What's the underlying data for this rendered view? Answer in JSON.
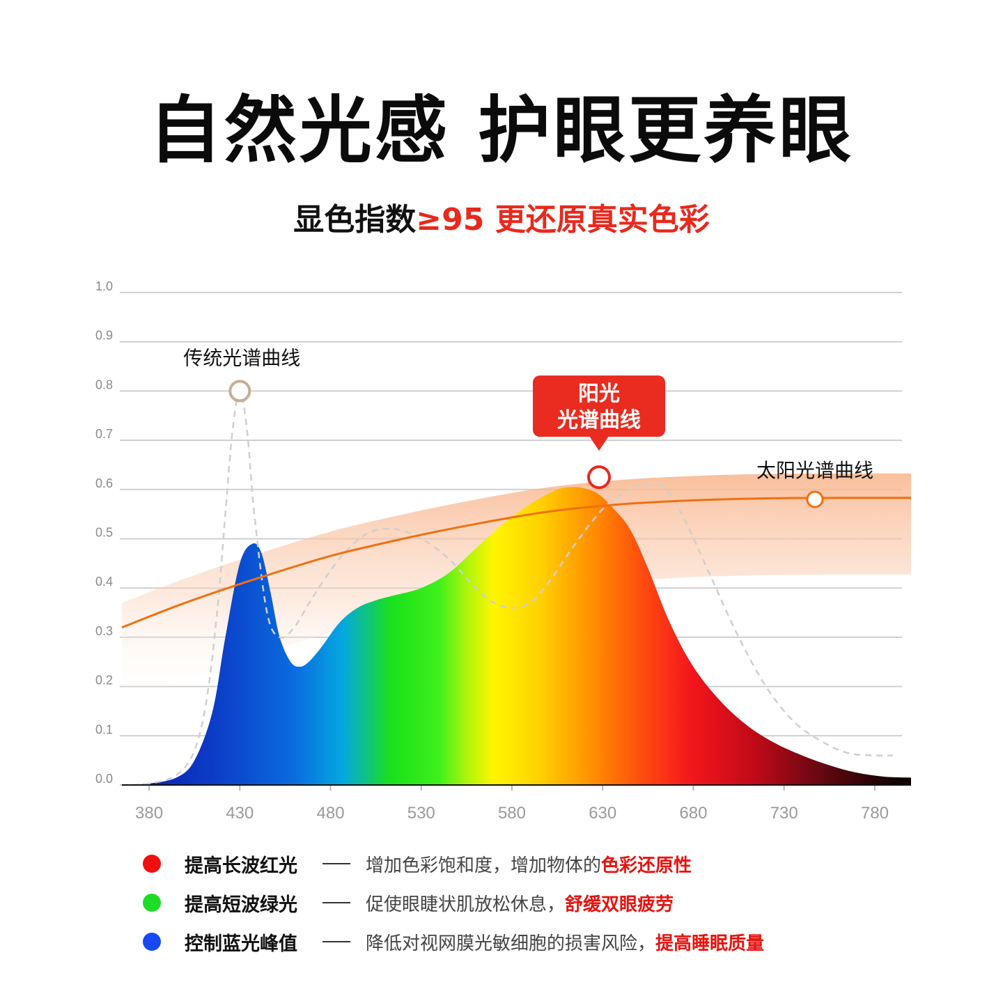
{
  "header": {
    "title": "自然光感 护眼更养眼",
    "subtitle_prefix": "显色指数",
    "subtitle_highlight": "≥95 更还原真实色彩"
  },
  "chart_data": {
    "type": "area",
    "xlabel": "",
    "ylabel": "",
    "xlim": [
      365,
      800
    ],
    "ylim": [
      0,
      1.0
    ],
    "x_ticks": [
      380,
      430,
      480,
      530,
      580,
      630,
      680,
      730,
      780
    ],
    "y_ticks": [
      "0.0",
      "0.1",
      "0.2",
      "0.3",
      "0.4",
      "0.5",
      "0.6",
      "0.7",
      "0.8",
      "0.9",
      "1.0"
    ],
    "grid": true,
    "series": [
      {
        "name": "阳光光谱曲线",
        "style": "filled spectrum gradient",
        "x": [
          365,
          380,
          395,
          405,
          415,
          422,
          430,
          437,
          442,
          447,
          452,
          458,
          463,
          468,
          475,
          485,
          495,
          505,
          515,
          530,
          545,
          560,
          575,
          590,
          605,
          615,
          622,
          628,
          635,
          645,
          655,
          667,
          680,
          695,
          710,
          725,
          740,
          755,
          770,
          785,
          800
        ],
        "y": [
          0.0,
          0.003,
          0.015,
          0.05,
          0.15,
          0.3,
          0.45,
          0.49,
          0.47,
          0.39,
          0.3,
          0.25,
          0.24,
          0.25,
          0.28,
          0.33,
          0.36,
          0.375,
          0.385,
          0.4,
          0.43,
          0.48,
          0.53,
          0.57,
          0.6,
          0.605,
          0.6,
          0.59,
          0.565,
          0.52,
          0.44,
          0.33,
          0.24,
          0.17,
          0.12,
          0.085,
          0.06,
          0.04,
          0.025,
          0.017,
          0.015
        ]
      },
      {
        "name": "传统光谱曲线",
        "style": "dashed",
        "x": [
          365,
          380,
          395,
          405,
          412,
          418,
          422,
          426,
          430,
          434,
          438,
          445,
          452,
          460,
          470,
          485,
          500,
          515,
          530,
          545,
          560,
          570,
          580,
          590,
          600,
          615,
          630,
          645,
          655,
          665,
          675,
          690,
          705,
          720,
          735,
          750,
          765,
          780,
          790
        ],
        "y": [
          0.0,
          0.003,
          0.02,
          0.07,
          0.18,
          0.37,
          0.55,
          0.72,
          0.8,
          0.72,
          0.55,
          0.35,
          0.3,
          0.32,
          0.38,
          0.46,
          0.51,
          0.52,
          0.5,
          0.46,
          0.4,
          0.37,
          0.36,
          0.37,
          0.41,
          0.49,
          0.56,
          0.6,
          0.61,
          0.6,
          0.54,
          0.42,
          0.3,
          0.2,
          0.13,
          0.09,
          0.065,
          0.06,
          0.06
        ]
      },
      {
        "name": "太阳光谱曲线",
        "style": "orange line with band",
        "x": [
          365,
          400,
          440,
          480,
          520,
          560,
          600,
          640,
          680,
          720,
          760,
          800
        ],
        "y": [
          0.32,
          0.37,
          0.42,
          0.465,
          0.5,
          0.53,
          0.555,
          0.57,
          0.578,
          0.582,
          0.583,
          0.583
        ]
      }
    ],
    "annotations": [
      {
        "text": "传统光谱曲线",
        "x": 430,
        "y": 0.8
      },
      {
        "text": "阳光\n光谱曲线",
        "x": 628,
        "y": 0.625,
        "callout": true
      },
      {
        "text": "太阳光谱曲线",
        "x": 747,
        "y": 0.58
      }
    ]
  },
  "legend": [
    {
      "color": "#f20f0f",
      "label": "提高长波红光",
      "desc": "增加色彩饱和度，增加物体的",
      "highlight": "色彩还原性"
    },
    {
      "color": "#1fdc27",
      "label": "提高短波绿光",
      "desc": "促使眼睫状肌放松休息，",
      "highlight": "舒缓双眼疲劳"
    },
    {
      "color": "#1649f2",
      "label": "控制蓝光峰值",
      "desc": "降低对视网膜光敏细胞的损害风险，",
      "highlight": "提高睡眠质量"
    }
  ],
  "colors": {
    "accent_red": "#e8291c",
    "sun_line": "#f07010",
    "traditional_marker": "#c8ad95",
    "grid": "#cfcfcf"
  }
}
